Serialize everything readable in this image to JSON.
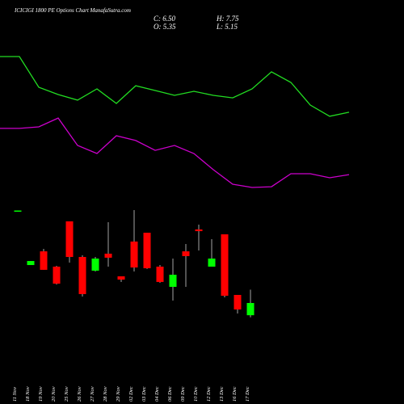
{
  "chart_data": {
    "type": "candlestick",
    "title": "ICICIGI 1800 PE Options Chart ManafaSutra.com",
    "ohlc_labels": [
      "C: 6.50",
      "O: 5.35",
      "H: 7.75",
      "L: 5.15"
    ],
    "categories": [
      "11 Nov",
      "18 Nov",
      "19 Nov",
      "20 Nov",
      "25 Nov",
      "26 Nov",
      "27 Nov",
      "28 Nov",
      "29 Nov",
      "02 Dec",
      "03 Dec",
      "04 Dec",
      "06 Dec",
      "09 Dec",
      "10 Dec",
      "12 Dec",
      "13 Dec",
      "16 Dec",
      "17 Dec"
    ],
    "open": [
      15.12,
      10.07,
      11.36,
      9.92,
      14.18,
      10.83,
      9.54,
      11.14,
      9.01,
      12.28,
      13.11,
      9.92,
      8.02,
      11.36,
      13.42,
      9.92,
      12.96,
      7.26,
      5.35
    ],
    "high": [
      15.2,
      10.45,
      11.59,
      10.0,
      14.18,
      10.98,
      10.83,
      14.1,
      9.01,
      15.24,
      13.11,
      10.07,
      10.68,
      12.05,
      13.87,
      12.5,
      12.96,
      7.26,
      7.75
    ],
    "low": [
      15.12,
      10.07,
      9.62,
      8.24,
      10.3,
      7.11,
      9.46,
      9.92,
      8.48,
      9.46,
      9.7,
      8.4,
      6.73,
      8.02,
      11.44,
      9.92,
      7.03,
      5.51,
      5.15
    ],
    "close": [
      15.2,
      10.45,
      9.62,
      8.32,
      10.83,
      7.34,
      10.68,
      10.76,
      8.7,
      9.84,
      9.77,
      8.48,
      9.16,
      10.91,
      13.26,
      10.68,
      7.18,
      5.89,
      6.5
    ],
    "up_color": "#00ff00",
    "down_color": "#ff0000",
    "wick_color": "#cccccc",
    "ylim": [
      -3,
      35
    ],
    "series": [
      {
        "color": "#22dd22",
        "values": [
          29.68,
          29.68,
          26.79,
          26.11,
          25.58,
          26.64,
          25.27,
          26.94,
          26.49,
          26.03,
          26.41,
          26.03,
          25.8,
          26.64,
          28.24,
          27.25,
          25.12,
          24.06,
          24.44
        ]
      },
      {
        "color": "#cc00cc",
        "values": [
          22.92,
          22.92,
          23.07,
          23.9,
          21.32,
          20.56,
          22.23,
          21.78,
          20.86,
          21.32,
          20.56,
          19.04,
          17.67,
          17.37,
          17.44,
          18.66,
          18.66,
          18.28,
          18.58
        ]
      }
    ]
  }
}
